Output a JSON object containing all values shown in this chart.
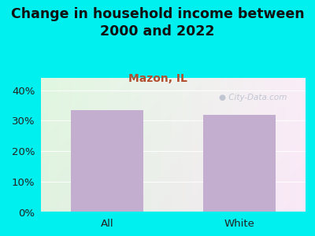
{
  "title": "Change in household income between\n2000 and 2022",
  "subtitle": "Mazon, IL",
  "categories": [
    "All",
    "White"
  ],
  "values": [
    33.5,
    32.0
  ],
  "bar_color": "#c4aed0",
  "title_fontsize": 12.5,
  "subtitle_fontsize": 10,
  "subtitle_color": "#b05030",
  "tick_label_fontsize": 9.5,
  "ylim": [
    0,
    44
  ],
  "yticks": [
    0,
    10,
    20,
    30,
    40
  ],
  "ytick_labels": [
    "0%",
    "10%",
    "20%",
    "30%",
    "40%"
  ],
  "background_outer": "#00efef",
  "watermark": "City-Data.com",
  "watermark_color": "#b0b8c8",
  "watermark_alpha": 0.75
}
